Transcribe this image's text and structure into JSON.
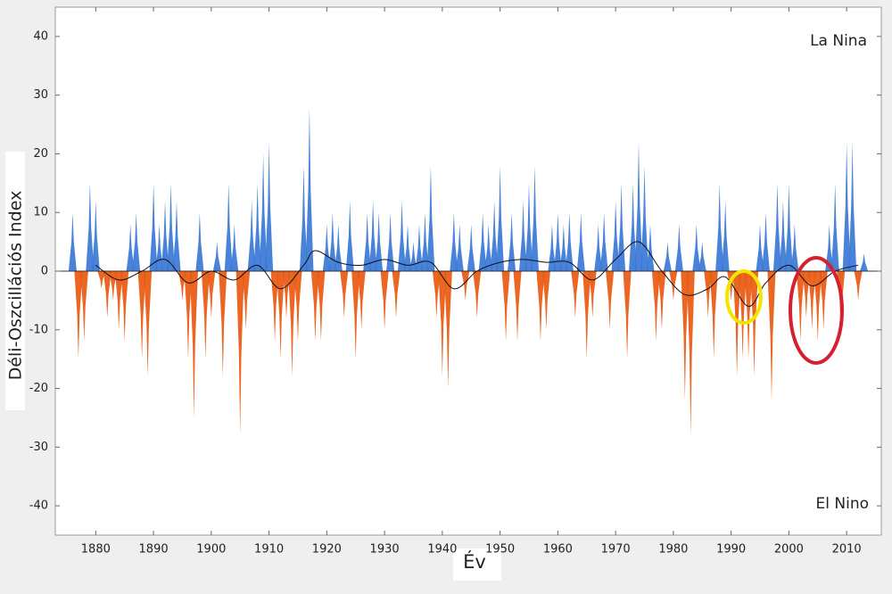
{
  "chart_data": {
    "type": "area",
    "xlabel": "Év",
    "ylabel": "Déli-Oszcillációs Index",
    "annotations": [
      "La Nina",
      "El Nino"
    ],
    "xlim": [
      1873,
      2016
    ],
    "ylim": [
      -45,
      45
    ],
    "xticks": [
      1880,
      1890,
      1900,
      1910,
      1920,
      1930,
      1940,
      1950,
      1960,
      1970,
      1980,
      1990,
      2000,
      2010
    ],
    "yticks": [
      -40,
      -30,
      -20,
      -10,
      0,
      10,
      20,
      30,
      40
    ],
    "colors": {
      "positive": "#3a78d6",
      "negative": "#e8590f"
    },
    "x": [
      1876,
      1877,
      1878,
      1879,
      1880,
      1881,
      1882,
      1883,
      1884,
      1885,
      1886,
      1887,
      1888,
      1889,
      1890,
      1891,
      1892,
      1893,
      1894,
      1895,
      1896,
      1897,
      1898,
      1899,
      1900,
      1901,
      1902,
      1903,
      1904,
      1905,
      1906,
      1907,
      1908,
      1909,
      1910,
      1911,
      1912,
      1913,
      1914,
      1915,
      1916,
      1917,
      1918,
      1919,
      1920,
      1921,
      1922,
      1923,
      1924,
      1925,
      1926,
      1927,
      1928,
      1929,
      1930,
      1931,
      1932,
      1933,
      1934,
      1935,
      1936,
      1937,
      1938,
      1939,
      1940,
      1941,
      1942,
      1943,
      1944,
      1945,
      1946,
      1947,
      1948,
      1949,
      1950,
      1951,
      1952,
      1953,
      1954,
      1955,
      1956,
      1957,
      1958,
      1959,
      1960,
      1961,
      1962,
      1963,
      1964,
      1965,
      1966,
      1967,
      1968,
      1969,
      1970,
      1971,
      1972,
      1973,
      1974,
      1975,
      1976,
      1977,
      1978,
      1979,
      1980,
      1981,
      1982,
      1983,
      1984,
      1985,
      1986,
      1987,
      1988,
      1989,
      1990,
      1991,
      1992,
      1993,
      1994,
      1995,
      1996,
      1997,
      1998,
      1999,
      2000,
      2001,
      2002,
      2003,
      2004,
      2005,
      2006,
      2007,
      2008,
      2009,
      2010,
      2011,
      2012,
      2013
    ],
    "values": [
      10,
      -15,
      -12,
      15,
      12,
      -3,
      -8,
      -5,
      -10,
      -12,
      8,
      10,
      -15,
      -18,
      15,
      8,
      12,
      15,
      12,
      -5,
      -15,
      -25,
      10,
      -15,
      -8,
      5,
      -18,
      15,
      8,
      -28,
      -10,
      12,
      15,
      20,
      22,
      -12,
      -15,
      -8,
      -18,
      -12,
      18,
      28,
      -12,
      -12,
      8,
      10,
      8,
      -8,
      12,
      -15,
      -10,
      10,
      12,
      10,
      -10,
      10,
      -8,
      12,
      8,
      5,
      8,
      10,
      18,
      -8,
      -18,
      -20,
      10,
      8,
      -5,
      8,
      -8,
      10,
      8,
      12,
      18,
      -12,
      10,
      -12,
      12,
      15,
      18,
      -12,
      -10,
      8,
      10,
      8,
      10,
      -8,
      10,
      -15,
      -8,
      8,
      10,
      -10,
      12,
      15,
      -15,
      15,
      22,
      18,
      8,
      -12,
      -10,
      5,
      -5,
      8,
      -22,
      -28,
      8,
      5,
      -8,
      -15,
      15,
      12,
      -5,
      -18,
      -15,
      -15,
      -18,
      8,
      10,
      -22,
      15,
      12,
      15,
      8,
      -12,
      -8,
      -10,
      -12,
      -10,
      8,
      15,
      -10,
      22,
      22,
      -5,
      3
    ],
    "trend": {
      "color": "#111111",
      "x": [
        1880,
        1884,
        1888,
        1892,
        1896,
        1900,
        1904,
        1908,
        1912,
        1916,
        1918,
        1922,
        1926,
        1930,
        1934,
        1938,
        1942,
        1946,
        1950,
        1954,
        1958,
        1962,
        1966,
        1970,
        1974,
        1978,
        1982,
        1986,
        1989,
        1993,
        1996,
        2000,
        2004,
        2008,
        2012
      ],
      "values": [
        1,
        -1.5,
        0,
        2,
        -2,
        0,
        -1.5,
        1,
        -3,
        1,
        3.5,
        1.5,
        1,
        2,
        1,
        1.5,
        -3,
        0,
        1.5,
        2,
        1.5,
        1.5,
        -1.5,
        2,
        5,
        0,
        -4,
        -3,
        -1,
        -6,
        -2,
        1,
        -2.5,
        0,
        1
      ]
    }
  }
}
